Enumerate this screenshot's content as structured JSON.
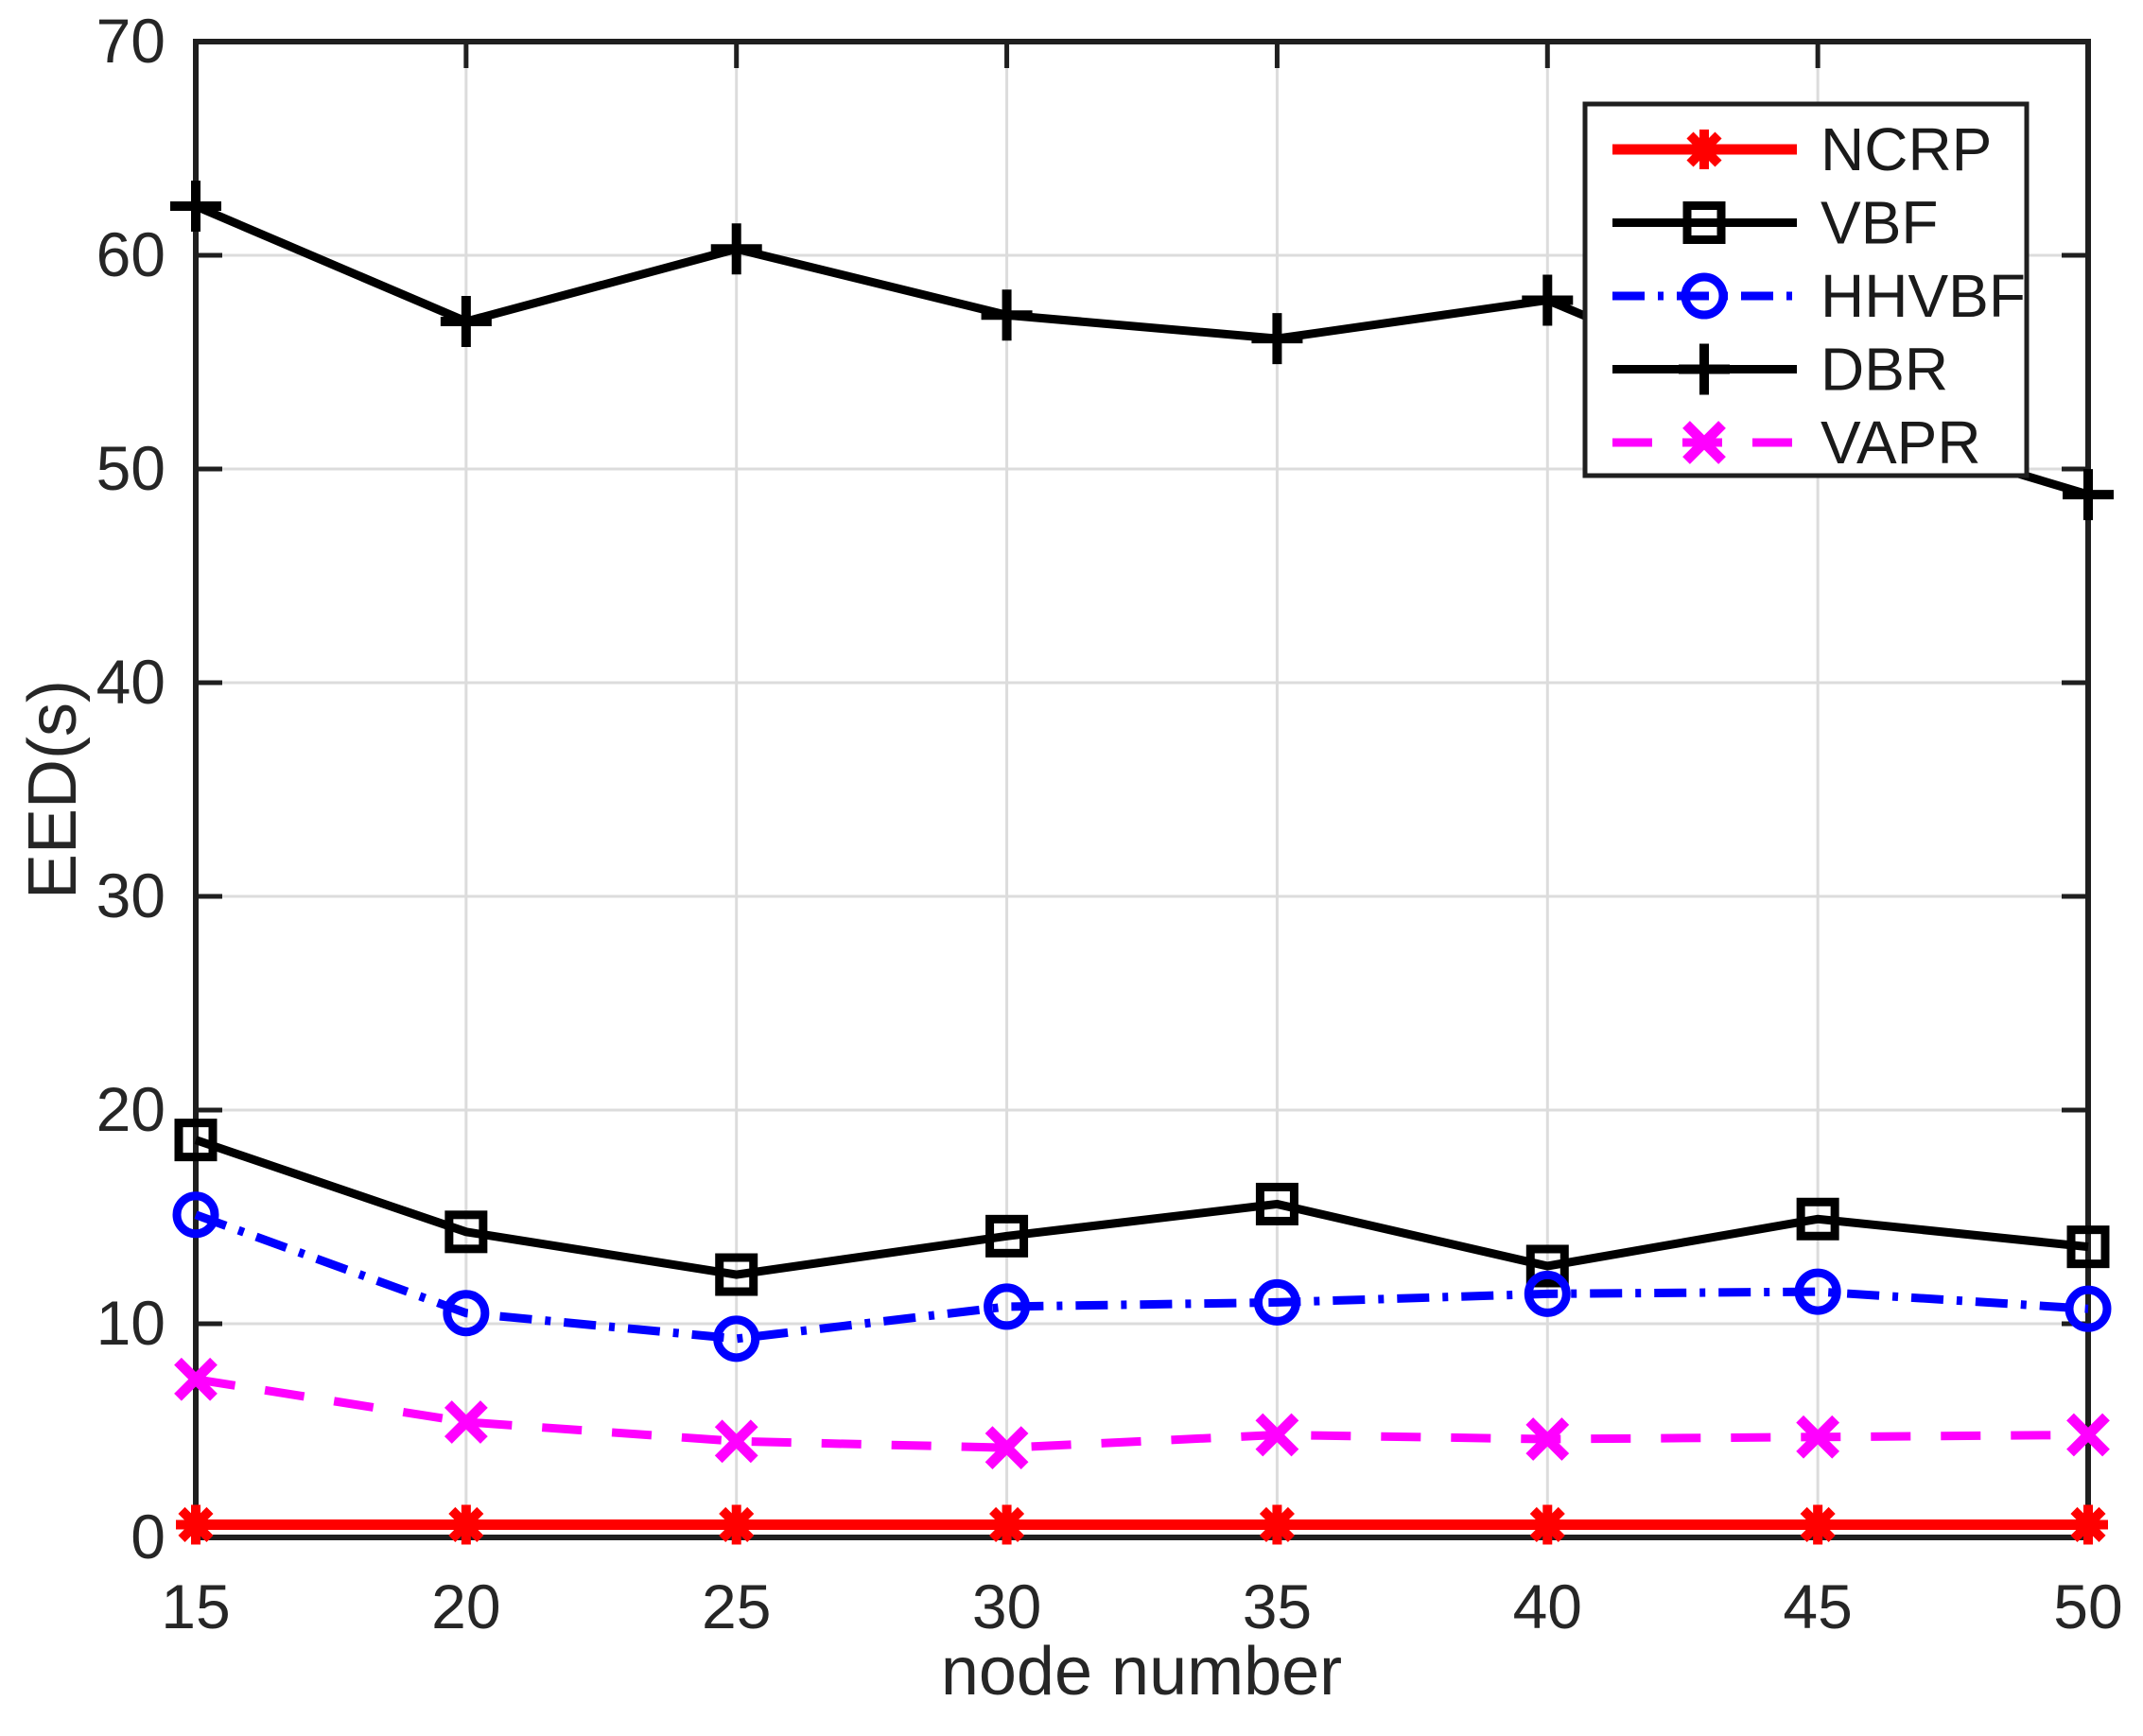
{
  "figure": {
    "background": "#ffffff",
    "axis_color": "#1f1f1f",
    "grid_color": "#dcdcdc",
    "text_color": "#262626"
  },
  "chart_data": {
    "type": "line",
    "title": "",
    "xlabel": "node number",
    "ylabel": "EED(s)",
    "xlim": [
      15,
      50
    ],
    "ylim": [
      0,
      70
    ],
    "x": [
      15,
      20,
      25,
      30,
      35,
      40,
      45,
      50
    ],
    "xtick_labels": [
      "15",
      "20",
      "25",
      "30",
      "35",
      "40",
      "45",
      "50"
    ],
    "ytick_labels": [
      "0",
      "10",
      "20",
      "30",
      "40",
      "50",
      "60",
      "70"
    ],
    "grid": true,
    "legend_position": "top-right",
    "series": [
      {
        "name": "NCRP",
        "color": "#ff0000",
        "line_style": "solid",
        "marker": "asterisk",
        "line_width": 11,
        "values": [
          0.6,
          0.6,
          0.6,
          0.6,
          0.6,
          0.6,
          0.6,
          0.6
        ]
      },
      {
        "name": "VBF",
        "color": "#000000",
        "line_style": "solid",
        "marker": "square",
        "line_width": 9,
        "values": [
          18.6,
          14.3,
          12.3,
          14.1,
          15.6,
          12.7,
          14.9,
          13.6
        ]
      },
      {
        "name": "HHVBF",
        "color": "#0000ff",
        "line_style": "dashdot",
        "marker": "circle",
        "line_width": 9,
        "values": [
          15.1,
          10.5,
          9.3,
          10.8,
          11.0,
          11.4,
          11.5,
          10.7
        ]
      },
      {
        "name": "DBR",
        "color": "#000000",
        "line_style": "solid",
        "marker": "plus",
        "line_width": 9,
        "values": [
          62.3,
          56.9,
          60.3,
          57.2,
          56.1,
          57.9,
          52.6,
          48.8
        ]
      },
      {
        "name": "VAPR",
        "color": "#ff00ff",
        "line_style": "dashed",
        "marker": "x",
        "line_width": 9,
        "values": [
          7.4,
          5.4,
          4.5,
          4.2,
          4.8,
          4.6,
          4.7,
          4.8
        ]
      }
    ]
  }
}
